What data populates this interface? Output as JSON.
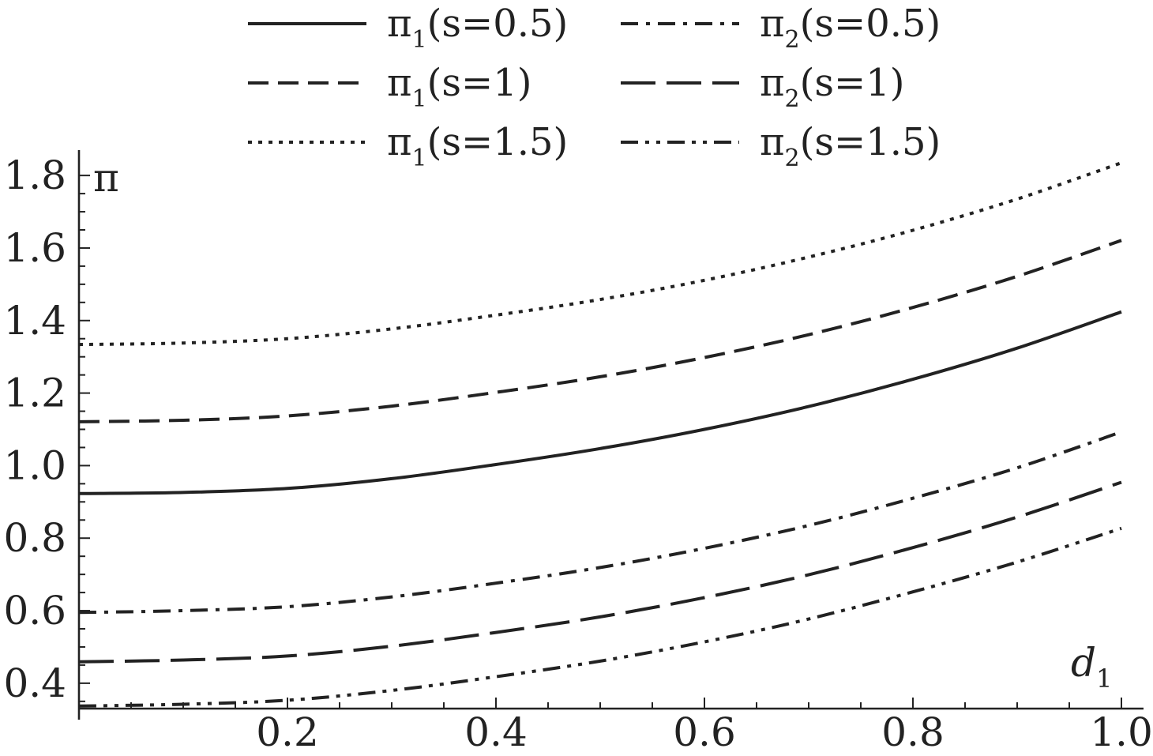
{
  "chart_data": {
    "type": "line",
    "title": "",
    "xlabel": "d",
    "xlabel_sub": "1",
    "ylabel": "π",
    "xlim": [
      0,
      1.0
    ],
    "ylim": [
      0.33,
      1.87
    ],
    "x_ticks": [
      "0.2",
      "0.4",
      "0.6",
      "0.8",
      "1.0"
    ],
    "y_ticks": [
      "0.4",
      "0.6",
      "0.8",
      "1.0",
      "1.2",
      "1.4",
      "1.6",
      "1.8"
    ],
    "x": [
      0,
      0.1,
      0.2,
      0.3,
      0.4,
      0.5,
      0.6,
      0.7,
      0.8,
      0.9,
      1.0
    ],
    "legend_position": "top",
    "series": [
      {
        "name": "π",
        "sub": "1",
        "param": "(s=0.5)",
        "style": "solid",
        "values": [
          0.923,
          0.926,
          0.937,
          0.964,
          1.003,
          1.047,
          1.1,
          1.163,
          1.238,
          1.324,
          1.424
        ]
      },
      {
        "name": "π",
        "sub": "1",
        "param": "(s=1)",
        "style": "dashed",
        "values": [
          1.121,
          1.125,
          1.137,
          1.164,
          1.202,
          1.245,
          1.298,
          1.361,
          1.436,
          1.522,
          1.621
        ]
      },
      {
        "name": "π",
        "sub": "1",
        "param": "(s=1.5)",
        "style": "dotted",
        "values": [
          1.334,
          1.338,
          1.35,
          1.377,
          1.415,
          1.458,
          1.511,
          1.575,
          1.649,
          1.735,
          1.835
        ]
      },
      {
        "name": "π",
        "sub": "2",
        "param": "(s=0.5)",
        "style": "dashdot",
        "values": [
          0.595,
          0.6,
          0.611,
          0.638,
          0.676,
          0.719,
          0.772,
          0.835,
          0.91,
          0.994,
          1.093
        ]
      },
      {
        "name": "π",
        "sub": "2",
        "param": "(s=1)",
        "style": "longdash",
        "values": [
          0.459,
          0.464,
          0.475,
          0.502,
          0.54,
          0.583,
          0.636,
          0.699,
          0.774,
          0.858,
          0.954
        ]
      },
      {
        "name": "π",
        "sub": "2",
        "param": "(s=1.5)",
        "style": "dashdotdot",
        "values": [
          0.337,
          0.342,
          0.353,
          0.38,
          0.418,
          0.461,
          0.514,
          0.577,
          0.652,
          0.734,
          0.827
        ]
      }
    ]
  }
}
